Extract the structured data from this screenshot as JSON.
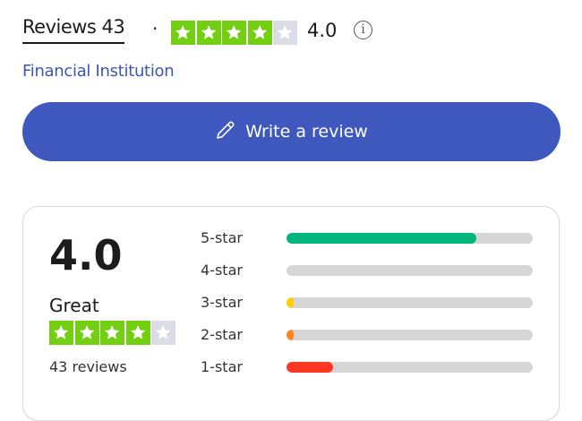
{
  "header": {
    "reviews_tab_label": "Reviews 43",
    "separator": "·",
    "rating": 4.0,
    "rating_text": "4.0",
    "info_icon": "i",
    "category_link": "Financial Institution"
  },
  "write_review": {
    "label": "Write a review",
    "icon": "pencil-icon"
  },
  "summary": {
    "rating_text": "4.0",
    "rating": 4.0,
    "rating_word": "Great",
    "review_count_text": "43 reviews"
  },
  "distribution": [
    {
      "label": "5-star",
      "percent": 77,
      "color": "#00b67a"
    },
    {
      "label": "4-star",
      "percent": 0,
      "color": "#73cf11"
    },
    {
      "label": "3-star",
      "percent": 2,
      "color": "#ffce00"
    },
    {
      "label": "2-star",
      "percent": 2,
      "color": "#ff8622"
    },
    {
      "label": "1-star",
      "percent": 19,
      "color": "#ff3722"
    }
  ],
  "colors": {
    "star_filled": "#73cf11",
    "star_empty": "#dcdce6",
    "accent": "#3e58bd",
    "link": "#3a57b8"
  }
}
